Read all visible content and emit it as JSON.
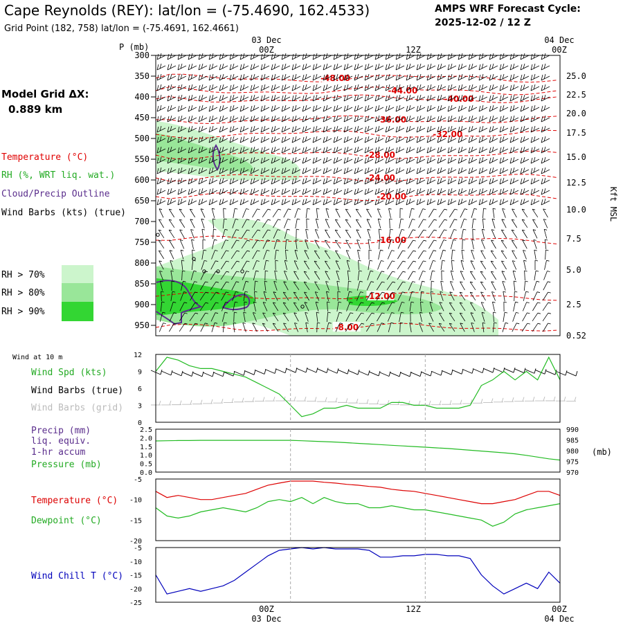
{
  "header": {
    "title": "Cape Reynolds (REY):  lat/lon = (-75.4690, 162.4533)",
    "subtitle": "Grid Point (182, 758) lat/lon = (-75.4691, 162.4661)",
    "cycle_label": "AMPS WRF Forecast Cycle:",
    "cycle_value": "2025-12-02 / 12  Z"
  },
  "top_times": {
    "date_left": "03 Dec",
    "date_right": "04 Dec",
    "t1": "00Z",
    "t2": "12Z",
    "t3": "00Z"
  },
  "bottom_times": {
    "t1": "00Z",
    "t2": "12Z",
    "t3": "00Z",
    "date_left": "03 Dec",
    "date_right": "04 Dec"
  },
  "grid": {
    "label": "Model Grid ΔX:",
    "value": "0.889 km"
  },
  "legend": {
    "temperature": "Temperature (°C)",
    "rh": "RH (%, WRT liq. wat.)",
    "cloud": "Cloud/Precip Outline",
    "wind": "Wind Barbs (kts) (true)",
    "rh70": "RH > 70%",
    "rh80": "RH > 80%",
    "rh90": "RH > 90%"
  },
  "colors": {
    "temp": "#e00000",
    "rh70": "#ccf5cc",
    "rh80": "#99e699",
    "rh90": "#33d633",
    "cloud": "#5a2d8c",
    "green": "#22bb22",
    "red": "#dd0000",
    "blue": "#0000bb",
    "gray": "#bbbbbb"
  },
  "chart_data": [
    {
      "type": "heatmap",
      "title": "Time-height cross section",
      "ylabel": "P (mb)",
      "right_label": "Kft MSL",
      "ylim": [
        975,
        300
      ],
      "pressure_ticks": [
        "300",
        "350",
        "400",
        "450",
        "500",
        "550",
        "600",
        "650",
        "700",
        "750",
        "800",
        "850",
        "900",
        "950"
      ],
      "kft_ticks": [
        "25.0",
        "22.5",
        "20.0",
        "17.5",
        "15.0",
        "12.5",
        "10.0",
        "7.5",
        "5.0",
        "2.5",
        "0.52"
      ],
      "kft_pressures": [
        350,
        395,
        440,
        487,
        545,
        607,
        672,
        742,
        817,
        900,
        975
      ],
      "x_hours": [
        0,
        36
      ],
      "temperature_isotherms": [
        {
          "label": "-48.00",
          "p": 355,
          "hour": 16
        },
        {
          "label": "-44.00",
          "p": 385,
          "hour": 22
        },
        {
          "label": "-40.00",
          "p": 405,
          "hour": 27
        },
        {
          "label": "-36.00",
          "p": 455,
          "hour": 21
        },
        {
          "label": "-32.00",
          "p": 490,
          "hour": 26
        },
        {
          "label": "-28.00",
          "p": 540,
          "hour": 20
        },
        {
          "label": "-24.00",
          "p": 595,
          "hour": 20
        },
        {
          "label": "-20.00",
          "p": 640,
          "hour": 21
        },
        {
          "label": "-16.00",
          "p": 745,
          "hour": 21
        },
        {
          "label": "-12.00",
          "p": 880,
          "hour": 20
        },
        {
          "label": "-8.00",
          "p": 955,
          "hour": 17
        }
      ]
    },
    {
      "type": "line",
      "title": "Wind at 10 m",
      "series_label": "Wind Spd (kts)",
      "barbs_true_label": "Wind Barbs (true)",
      "barbs_grid_label": "Wind Barbs (grid)",
      "ylim": [
        0,
        12
      ],
      "yticks": [
        "0",
        "3",
        "6",
        "9",
        "12"
      ],
      "x": [
        0,
        1,
        2,
        3,
        4,
        5,
        6,
        7,
        8,
        9,
        10,
        11,
        12,
        13,
        14,
        15,
        16,
        17,
        18,
        19,
        20,
        21,
        22,
        23,
        24,
        25,
        26,
        27,
        28,
        29,
        30,
        31,
        32,
        33,
        34,
        35,
        36
      ],
      "values": [
        9,
        11.5,
        11,
        10,
        9.5,
        9.5,
        9,
        8.5,
        8,
        7,
        6,
        5,
        3,
        1,
        1.5,
        2.5,
        2.5,
        3,
        2.5,
        2.5,
        2.5,
        3.5,
        3.5,
        3,
        3,
        2.5,
        2.5,
        2.5,
        3,
        6.5,
        7.5,
        9,
        7.5,
        9,
        7.5,
        11.5,
        7.5
      ]
    },
    {
      "type": "line",
      "series": [
        {
          "name": "Precip (mm) liq. equiv. 1-hr accum",
          "values": [
            0,
            0,
            0,
            0,
            0,
            0,
            0,
            0,
            0,
            0,
            0,
            0,
            0,
            0,
            0,
            0,
            0,
            0,
            0,
            0,
            0,
            0,
            0,
            0,
            0,
            0,
            0,
            0,
            0,
            0,
            0,
            0,
            0,
            0,
            0,
            0,
            0
          ]
        },
        {
          "name": "Pressure (mb)",
          "values": [
            984.5,
            984.6,
            984.7,
            984.7,
            984.8,
            984.8,
            984.8,
            984.8,
            984.8,
            984.8,
            984.8,
            984.8,
            984.8,
            984.6,
            984.4,
            984.2,
            984,
            983.7,
            983.4,
            983.1,
            982.8,
            982.5,
            982.2,
            981.9,
            981.6,
            981.3,
            981,
            980.6,
            980.2,
            979.8,
            979.4,
            979,
            978.5,
            977.8,
            977,
            976.2,
            975.6
          ]
        }
      ],
      "precip_label": "Precip (mm)",
      "precip_label2": "liq. equiv.",
      "precip_label3": "1-hr accum",
      "pressure_label": "Pressure (mb)",
      "unit": "(mb)",
      "ylim_left": [
        0,
        2.5
      ],
      "ylim_right": [
        970,
        990
      ],
      "yticks_left": [
        "0.0",
        "0.5",
        "1.0",
        "1.5",
        "2.0",
        "2.5"
      ],
      "yticks_right": [
        "970",
        "975",
        "980",
        "985",
        "990"
      ]
    },
    {
      "type": "line",
      "series": [
        {
          "name": "Temperature (°C)",
          "values": [
            -8,
            -9.5,
            -9,
            -9.5,
            -10,
            -10,
            -9.5,
            -9,
            -8.5,
            -7.5,
            -6.5,
            -6,
            -5.5,
            -5.5,
            -5.5,
            -5.8,
            -6,
            -6.3,
            -6.5,
            -6.8,
            -7,
            -7.5,
            -7.8,
            -8,
            -8.5,
            -9,
            -9.5,
            -10,
            -10.5,
            -11,
            -11,
            -10.5,
            -10,
            -9,
            -8,
            -8,
            -9
          ]
        },
        {
          "name": "Dewpoint (°C)",
          "values": [
            -12,
            -14,
            -14.5,
            -14,
            -13,
            -12.5,
            -12,
            -12.5,
            -13,
            -12,
            -10.5,
            -10,
            -10.5,
            -9.5,
            -11,
            -9.5,
            -10.5,
            -11,
            -11,
            -12,
            -12,
            -11.5,
            -12,
            -12.5,
            -12.5,
            -13,
            -13.5,
            -14,
            -14.5,
            -15,
            -16.5,
            -15.5,
            -13.5,
            -12.5,
            -12,
            -11.5,
            -11
          ]
        }
      ],
      "temperature_label": "Temperature (°C)",
      "dewpoint_label": "Dewpoint (°C)",
      "ylim": [
        -20,
        -5
      ],
      "yticks": [
        "-5",
        "-10",
        "-15",
        "-20"
      ]
    },
    {
      "type": "line",
      "series": [
        {
          "name": "Wind Chill T (°C)",
          "values": [
            -15,
            -22,
            -21,
            -20,
            -21,
            -20,
            -19,
            -17,
            -14,
            -11,
            -8,
            -6,
            -5.5,
            -5,
            -5.5,
            -5,
            -5.5,
            -5.5,
            -5.5,
            -6,
            -8.5,
            -8.5,
            -8,
            -8,
            -7.5,
            -7.5,
            -8,
            -8,
            -9,
            -15,
            -19,
            -22,
            -20,
            -18,
            -20,
            -14,
            -18
          ]
        }
      ],
      "label": "Wind Chill T (°C)",
      "ylim": [
        -25,
        -5
      ],
      "yticks": [
        "-5",
        "-10",
        "-15",
        "-20",
        "-25"
      ]
    }
  ]
}
